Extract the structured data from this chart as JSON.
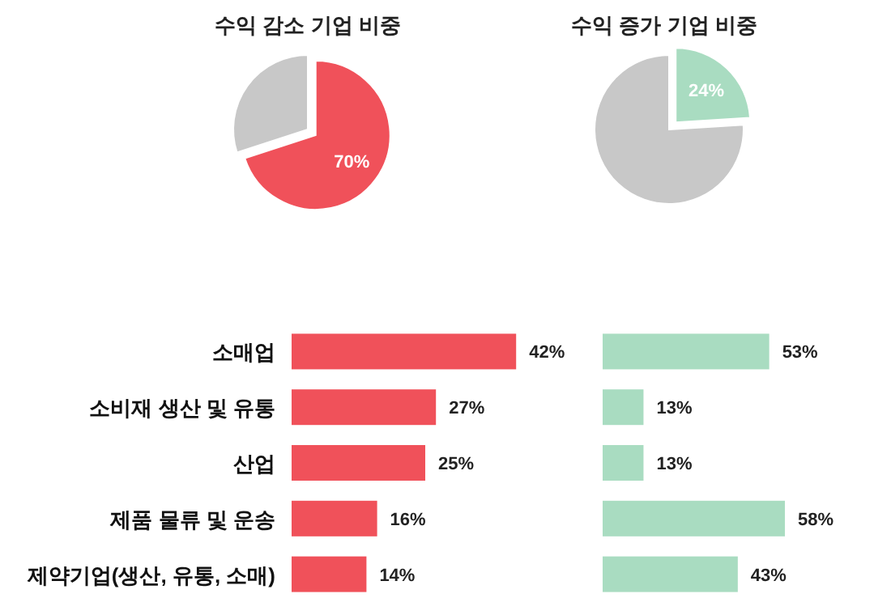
{
  "chart_data": [
    {
      "type": "pie",
      "title": "수익 감소 기업 비중",
      "categories": [
        null,
        null
      ],
      "values": [
        70,
        30
      ],
      "colors": [
        "#f0515a",
        "#c8c8c8"
      ],
      "value_labels": [
        "70%",
        null
      ]
    },
    {
      "type": "pie",
      "title": "수익 증가 기업 비중",
      "categories": [
        null,
        null
      ],
      "values": [
        24,
        76
      ],
      "colors": [
        "#a9dcc1",
        "#c8c8c8"
      ],
      "value_labels": [
        "24%",
        null
      ]
    },
    {
      "type": "bar",
      "orientation": "horizontal",
      "categories": [
        "소매업",
        "소비재 생산 및 유통",
        "산업",
        "제품 물류 및 운송",
        "제약기업(생산, 유통, 소매)"
      ],
      "values": [
        42,
        27,
        25,
        16,
        14
      ],
      "color": "#f0515a",
      "value_labels": [
        "42%",
        "27%",
        "25%",
        "16%",
        "14%"
      ]
    },
    {
      "type": "bar",
      "orientation": "horizontal",
      "categories": [
        null,
        null,
        null,
        null,
        null
      ],
      "values": [
        53,
        13,
        13,
        58,
        43
      ],
      "color": "#a9dcc1",
      "value_labels": [
        "53%",
        "13%",
        "13%",
        "58%",
        "43%"
      ]
    }
  ]
}
